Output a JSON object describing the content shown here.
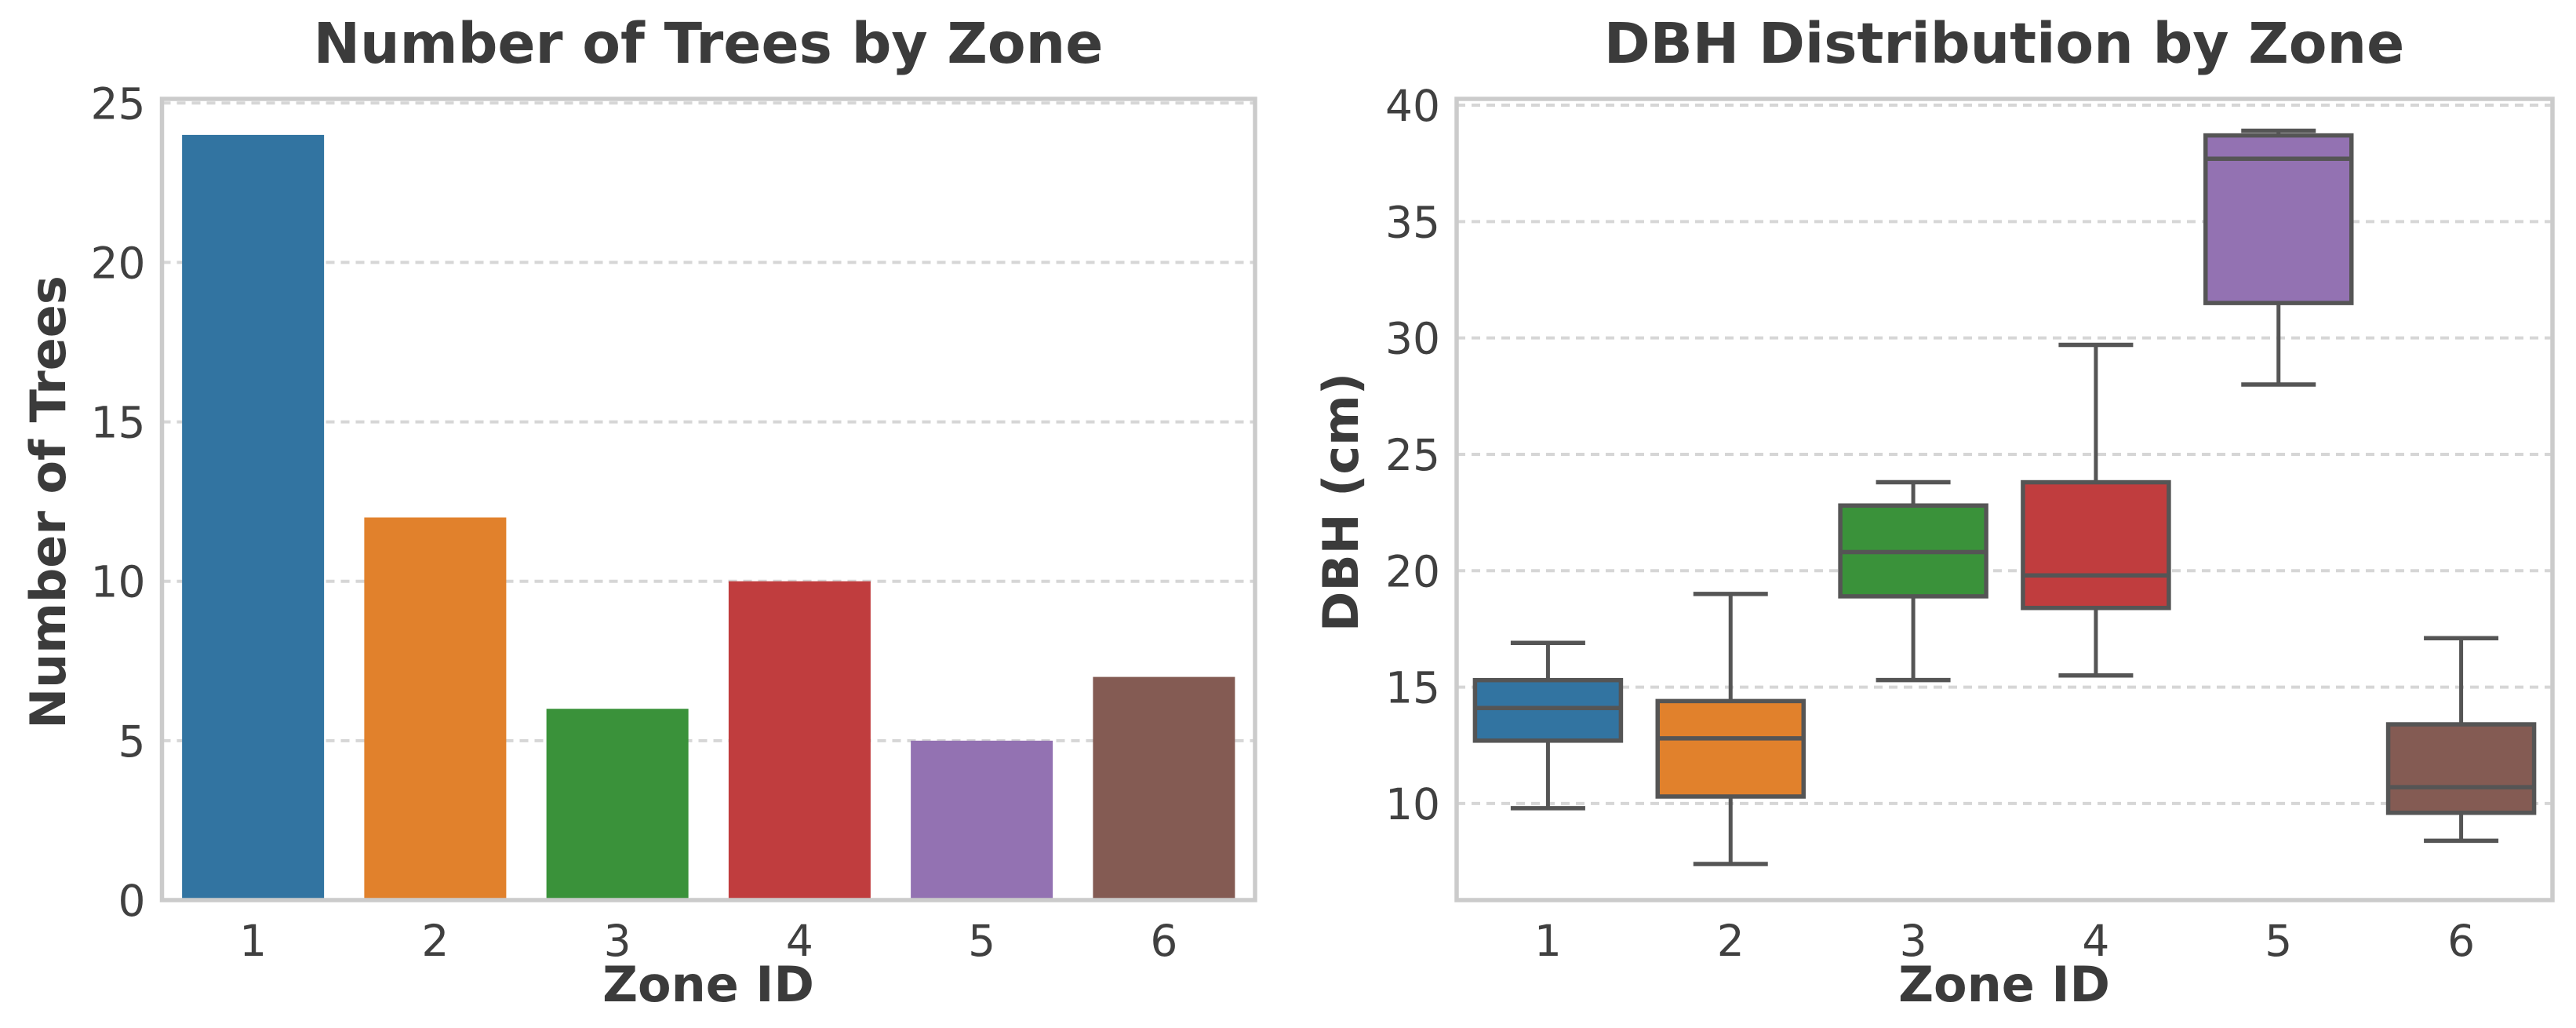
{
  "figure": {
    "background": "#ffffff",
    "text_color": "#3b3b3b",
    "tick_color": "#404040",
    "spine_color": "#cbcbcb",
    "grid_color": "#d6d6d6",
    "box_line_color": "#555555",
    "palette": [
      "#3274a1",
      "#e1812c",
      "#3a923a",
      "#c03d3e",
      "#9372b2",
      "#845b53"
    ]
  },
  "chart_data": [
    {
      "type": "bar",
      "title": "Number of Trees by Zone",
      "xlabel": "Zone ID",
      "ylabel": "Number of Trees",
      "categories": [
        "1",
        "2",
        "3",
        "4",
        "5",
        "6"
      ],
      "values": [
        24,
        12,
        6,
        10,
        5,
        7
      ],
      "yticks": [
        0,
        5,
        10,
        15,
        20,
        25
      ],
      "ylim": [
        0,
        25.13
      ],
      "grid": "horizontal-dashed",
      "legend": "none",
      "bar_colors": [
        "#3274a1",
        "#e1812c",
        "#3a923a",
        "#c03d3e",
        "#9372b2",
        "#845b53"
      ]
    },
    {
      "type": "box",
      "title": "DBH Distribution by Zone",
      "xlabel": "Zone ID",
      "ylabel": "DBH (cm)",
      "categories": [
        "1",
        "2",
        "3",
        "4",
        "5",
        "6"
      ],
      "series": [
        {
          "zone": "1",
          "whisker_low": 9.8,
          "q1": 12.7,
          "median": 14.1,
          "q3": 15.3,
          "whisker_high": 16.9
        },
        {
          "zone": "2",
          "whisker_low": 7.4,
          "q1": 10.3,
          "median": 12.8,
          "q3": 14.4,
          "whisker_high": 19.0
        },
        {
          "zone": "3",
          "whisker_low": 15.3,
          "q1": 18.9,
          "median": 20.8,
          "q3": 22.8,
          "whisker_high": 23.8
        },
        {
          "zone": "4",
          "whisker_low": 15.5,
          "q1": 18.4,
          "median": 19.8,
          "q3": 23.8,
          "whisker_high": 29.7
        },
        {
          "zone": "5",
          "whisker_low": 28.0,
          "q1": 31.5,
          "median": 37.7,
          "q3": 38.7,
          "whisker_high": 38.9
        },
        {
          "zone": "6",
          "whisker_low": 8.4,
          "q1": 9.6,
          "median": 10.7,
          "q3": 13.4,
          "whisker_high": 17.1
        }
      ],
      "yticks": [
        10,
        15,
        20,
        25,
        30,
        35,
        40
      ],
      "ylim": [
        5.85,
        40.27
      ],
      "grid": "horizontal-dashed",
      "legend": "none",
      "box_colors": [
        "#3274a1",
        "#e1812c",
        "#3a923a",
        "#c03d3e",
        "#9372b2",
        "#845b53"
      ]
    }
  ]
}
